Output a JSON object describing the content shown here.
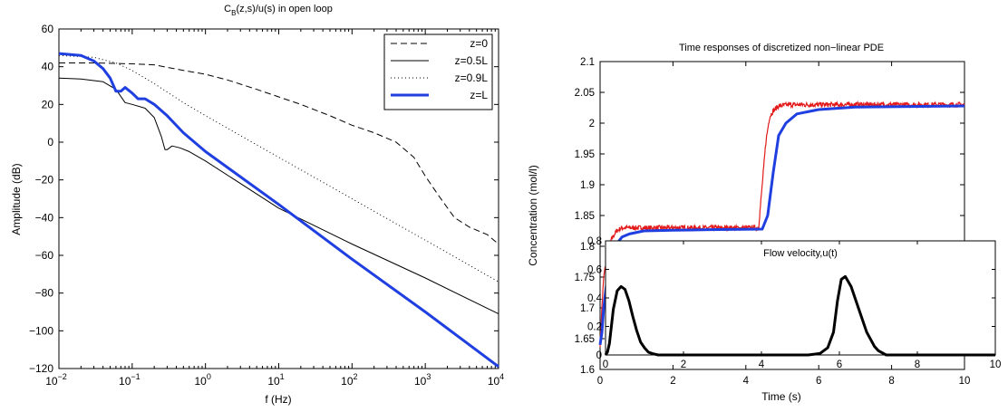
{
  "chart_data": [
    {
      "type": "line",
      "title": "C_B(z,s)/u(s) in open loop",
      "title_main": "C",
      "title_sub": "B",
      "title_rest": "(z,s)/u(s) in open loop",
      "xlabel": "f (Hz)",
      "ylabel": "Amplitude (dB)",
      "xscale": "log",
      "xlim": [
        0.01,
        10000
      ],
      "ylim": [
        -120,
        60
      ],
      "xticks": [
        0.01,
        0.1,
        1,
        10,
        100,
        1000,
        10000
      ],
      "xtick_base": "10",
      "xtick_exponents": [
        "−2",
        "−1",
        "0",
        "1",
        "2",
        "3",
        "4"
      ],
      "yticks": [
        60,
        40,
        20,
        0,
        -20,
        -40,
        -60,
        -80,
        -100,
        -120
      ],
      "ytick_labels": [
        "60",
        "40",
        "20",
        "0",
        "−20",
        "−40",
        "−60",
        "−80",
        "−100",
        "−120"
      ],
      "grid": false,
      "legend_position": "top-right",
      "series": [
        {
          "name": "z=0",
          "color": "#000000",
          "style": "dashed",
          "x": [
            0.01,
            0.03,
            0.1,
            0.2,
            0.5,
            1,
            2,
            5,
            10,
            20,
            50,
            100,
            200,
            400,
            700,
            1000,
            1500,
            2500,
            4000,
            7000,
            10000
          ],
          "y": [
            42,
            42,
            41.5,
            41,
            38,
            36,
            33,
            28,
            24,
            20,
            14,
            9,
            5,
            0,
            -8,
            -18,
            -28,
            -40,
            -45,
            -49,
            -54
          ]
        },
        {
          "name": "z=0.5L",
          "color": "#000000",
          "style": "solid",
          "x": [
            0.01,
            0.02,
            0.04,
            0.06,
            0.08,
            0.1,
            0.15,
            0.2,
            0.25,
            0.28,
            0.3,
            0.35,
            0.45,
            0.6,
            1,
            10,
            100,
            1000,
            10000
          ],
          "y": [
            34,
            33.5,
            32,
            28,
            21,
            20,
            18,
            13,
            3,
            -4,
            -4,
            -2,
            -3,
            -5,
            -10,
            -35,
            -54,
            -72,
            -91
          ]
        },
        {
          "name": "z=0.9L",
          "color": "#000000",
          "style": "dotted",
          "x": [
            0.01,
            0.03,
            0.06,
            0.1,
            0.2,
            0.5,
            1,
            10,
            100,
            1000,
            10000
          ],
          "y": [
            46,
            45,
            42,
            38,
            31,
            21,
            14,
            -8,
            -30,
            -52,
            -74
          ]
        },
        {
          "name": "z=L",
          "color": "#1f3fe0",
          "style": "thick",
          "x": [
            0.01,
            0.02,
            0.03,
            0.04,
            0.05,
            0.06,
            0.07,
            0.08,
            0.1,
            0.12,
            0.15,
            0.2,
            0.3,
            0.5,
            1,
            10,
            100,
            1000,
            10000
          ],
          "y": [
            47,
            46,
            43,
            39,
            34,
            27,
            27,
            29,
            26,
            23,
            23,
            20,
            14,
            5,
            -5,
            -33,
            -62,
            -90,
            -119
          ]
        }
      ]
    },
    {
      "type": "line",
      "title": "Time responses of discretized non−linear PDE",
      "xlabel": "Time (s)",
      "ylabel": "Concentration (mol/l)",
      "xlim": [
        0,
        10
      ],
      "ylim": [
        1.6,
        2.1
      ],
      "xticks": [
        0,
        2,
        4,
        6,
        8,
        10
      ],
      "yticks": [
        1.6,
        1.65,
        1.7,
        1.75,
        1.8,
        1.85,
        1.9,
        1.95,
        2.0,
        2.05,
        2.1
      ],
      "ytick_labels": [
        "1.6",
        "1.65",
        "1.7",
        "1.75",
        "1.8",
        "1.85",
        "1.9",
        "1.95",
        "2",
        "2.05",
        "2.1"
      ],
      "grid": false,
      "series": [
        {
          "color": "#e41a1a",
          "style": "noisy",
          "x": [
            0,
            0.05,
            0.1,
            0.2,
            0.3,
            0.45,
            0.6,
            0.8,
            4.35,
            4.45,
            4.55,
            4.65,
            4.75,
            4.9,
            5.2,
            6,
            10
          ],
          "y": [
            1.64,
            1.7,
            1.75,
            1.79,
            1.81,
            1.825,
            1.83,
            1.83,
            1.83,
            1.9,
            1.97,
            2.01,
            2.02,
            2.028,
            2.03,
            2.03,
            2.03
          ]
        },
        {
          "color": "#1f3fe0",
          "style": "thick",
          "x": [
            0,
            0.05,
            0.1,
            0.2,
            0.3,
            0.4,
            0.6,
            0.8,
            1.2,
            2,
            3,
            4.45,
            4.6,
            4.75,
            4.9,
            5.1,
            5.4,
            6,
            7,
            10
          ],
          "y": [
            1.64,
            1.66,
            1.7,
            1.75,
            1.78,
            1.8,
            1.815,
            1.82,
            1.825,
            1.826,
            1.827,
            1.828,
            1.85,
            1.92,
            1.98,
            2.0,
            2.015,
            2.022,
            2.026,
            2.028
          ]
        }
      ],
      "inset": {
        "type": "line",
        "title": "Flow velocity,u(t)",
        "xlim": [
          0,
          10
        ],
        "ylim": [
          0,
          0.8
        ],
        "xticks": [
          0,
          2,
          4,
          6,
          8,
          10
        ],
        "yticks": [
          0,
          0.2,
          0.4,
          0.6,
          0.8
        ],
        "ytick_labels": [
          "0",
          "0.2",
          "0.4",
          "0.6",
          "0.8"
        ],
        "series": [
          {
            "color": "#000000",
            "style": "thick",
            "x": [
              0,
              0.05,
              0.1,
              0.2,
              0.3,
              0.4,
              0.5,
              0.6,
              0.7,
              0.8,
              0.9,
              1.0,
              1.1,
              1.2,
              1.35,
              1.5,
              5.2,
              5.5,
              5.7,
              5.85,
              5.95,
              6.05,
              6.15,
              6.3,
              6.5,
              6.7,
              6.9,
              7.0,
              7.2,
              10
            ],
            "y": [
              0.0,
              0.02,
              0.08,
              0.32,
              0.45,
              0.48,
              0.46,
              0.38,
              0.27,
              0.17,
              0.09,
              0.05,
              0.02,
              0.01,
              0.0,
              0.0,
              0.0,
              0.01,
              0.05,
              0.16,
              0.38,
              0.53,
              0.55,
              0.48,
              0.32,
              0.16,
              0.06,
              0.03,
              0.0,
              0.0
            ]
          }
        ]
      }
    }
  ]
}
